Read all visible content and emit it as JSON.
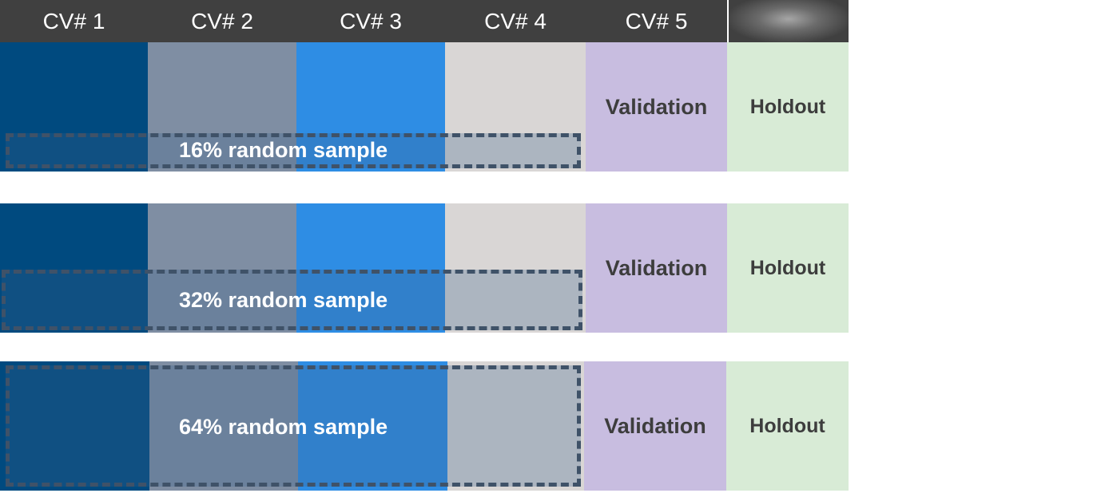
{
  "header": {
    "folds": [
      "CV# 1",
      "CV# 2",
      "CV# 3",
      "CV# 4",
      "CV# 5"
    ]
  },
  "rows": [
    {
      "sample_label": "16% random sample",
      "validation": "Validation",
      "holdout": "Holdout"
    },
    {
      "sample_label": "32% random sample",
      "validation": "Validation",
      "holdout": "Holdout"
    },
    {
      "sample_label": "64% random sample",
      "validation": "Validation",
      "holdout": "Holdout"
    }
  ],
  "colors": {
    "header_bg": "#404040",
    "fold1": "#004a7f",
    "fold2": "#7f8ea3",
    "fold3": "#2e8de4",
    "fold4": "#d9d6d5",
    "validation": "#c8bde0",
    "holdout": "#d8ebd6",
    "sample_border": "#3f5268"
  }
}
